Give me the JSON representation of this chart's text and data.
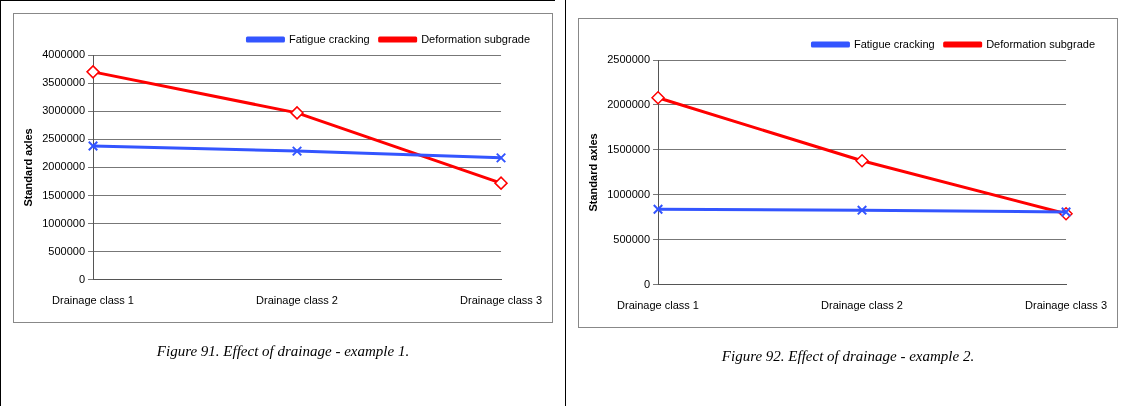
{
  "chart_data": [
    {
      "type": "line",
      "ylabel": "Standard axles",
      "categories": [
        "Drainage class 1",
        "Drainage class 2",
        "Drainage class 3"
      ],
      "series": [
        {
          "name": "Fatigue cracking",
          "color": "#3355ff",
          "marker": "cross",
          "values": [
            2380000,
            2290000,
            2170000
          ]
        },
        {
          "name": "Deformation subgrade",
          "color": "#ff0000",
          "marker": "diamond",
          "values": [
            3700000,
            2970000,
            1720000
          ]
        }
      ],
      "ylim": [
        0,
        4000000
      ],
      "yticks": [
        0,
        500000,
        1000000,
        1500000,
        2000000,
        2500000,
        3000000,
        3500000,
        4000000
      ],
      "grid": "y",
      "legend": "top right",
      "line_style": "solid",
      "annotations": [
        "Figure 91. Effect of drainage - example 1."
      ]
    },
    {
      "type": "line",
      "ylabel": "Standard axles",
      "categories": [
        "Drainage class 1",
        "Drainage class 2",
        "Drainage class 3"
      ],
      "series": [
        {
          "name": "Fatigue cracking",
          "color": "#3355ff",
          "marker": "cross",
          "values": [
            840000,
            830000,
            810000
          ]
        },
        {
          "name": "Deformation subgrade",
          "color": "#ff0000",
          "marker": "diamond",
          "values": [
            2080000,
            1380000,
            790000
          ]
        }
      ],
      "ylim": [
        0,
        2500000
      ],
      "yticks": [
        0,
        500000,
        1000000,
        1500000,
        2000000,
        2500000
      ],
      "grid": "y",
      "legend": "top right",
      "line_style": "solid",
      "annotations": [
        "Figure 92. Effect of drainage - example 2."
      ]
    }
  ]
}
